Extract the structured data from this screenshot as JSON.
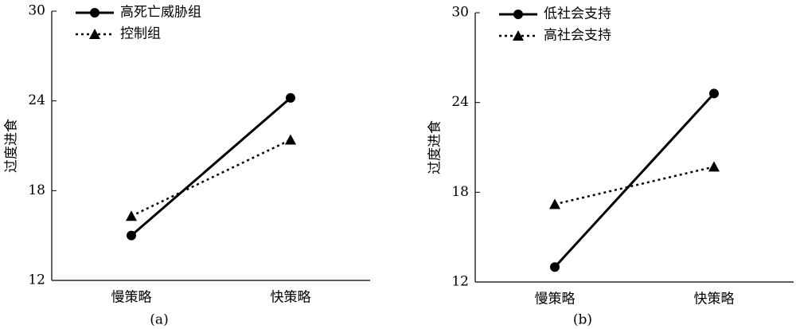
{
  "chart_data": [
    {
      "type": "line",
      "caption": "(a)",
      "ylabel": "过度进食",
      "categories": [
        "慢策略",
        "快策略"
      ],
      "series": [
        {
          "name": "高死亡威胁组",
          "color": "#000000",
          "marker": "circle",
          "linestyle": "solid",
          "values": [
            15.0,
            24.2
          ]
        },
        {
          "name": "控制组",
          "color": "#000000",
          "marker": "triangle",
          "linestyle": "dotted",
          "values": [
            16.3,
            21.4
          ]
        }
      ],
      "ylim": [
        12,
        30
      ],
      "yticks": [
        12,
        18,
        24,
        30
      ],
      "legend": "upper-left"
    },
    {
      "type": "line",
      "caption": "(b)",
      "ylabel": "过度进食",
      "categories": [
        "慢策略",
        "快策略"
      ],
      "series": [
        {
          "name": "低社会支持",
          "color": "#000000",
          "marker": "circle",
          "linestyle": "solid",
          "values": [
            13.0,
            24.6
          ]
        },
        {
          "name": "高社会支持",
          "color": "#000000",
          "marker": "triangle",
          "linestyle": "dotted",
          "values": [
            17.2,
            19.7
          ]
        }
      ],
      "ylim": [
        12,
        30
      ],
      "yticks": [
        12,
        18,
        24,
        30
      ],
      "legend": "upper-left"
    }
  ]
}
